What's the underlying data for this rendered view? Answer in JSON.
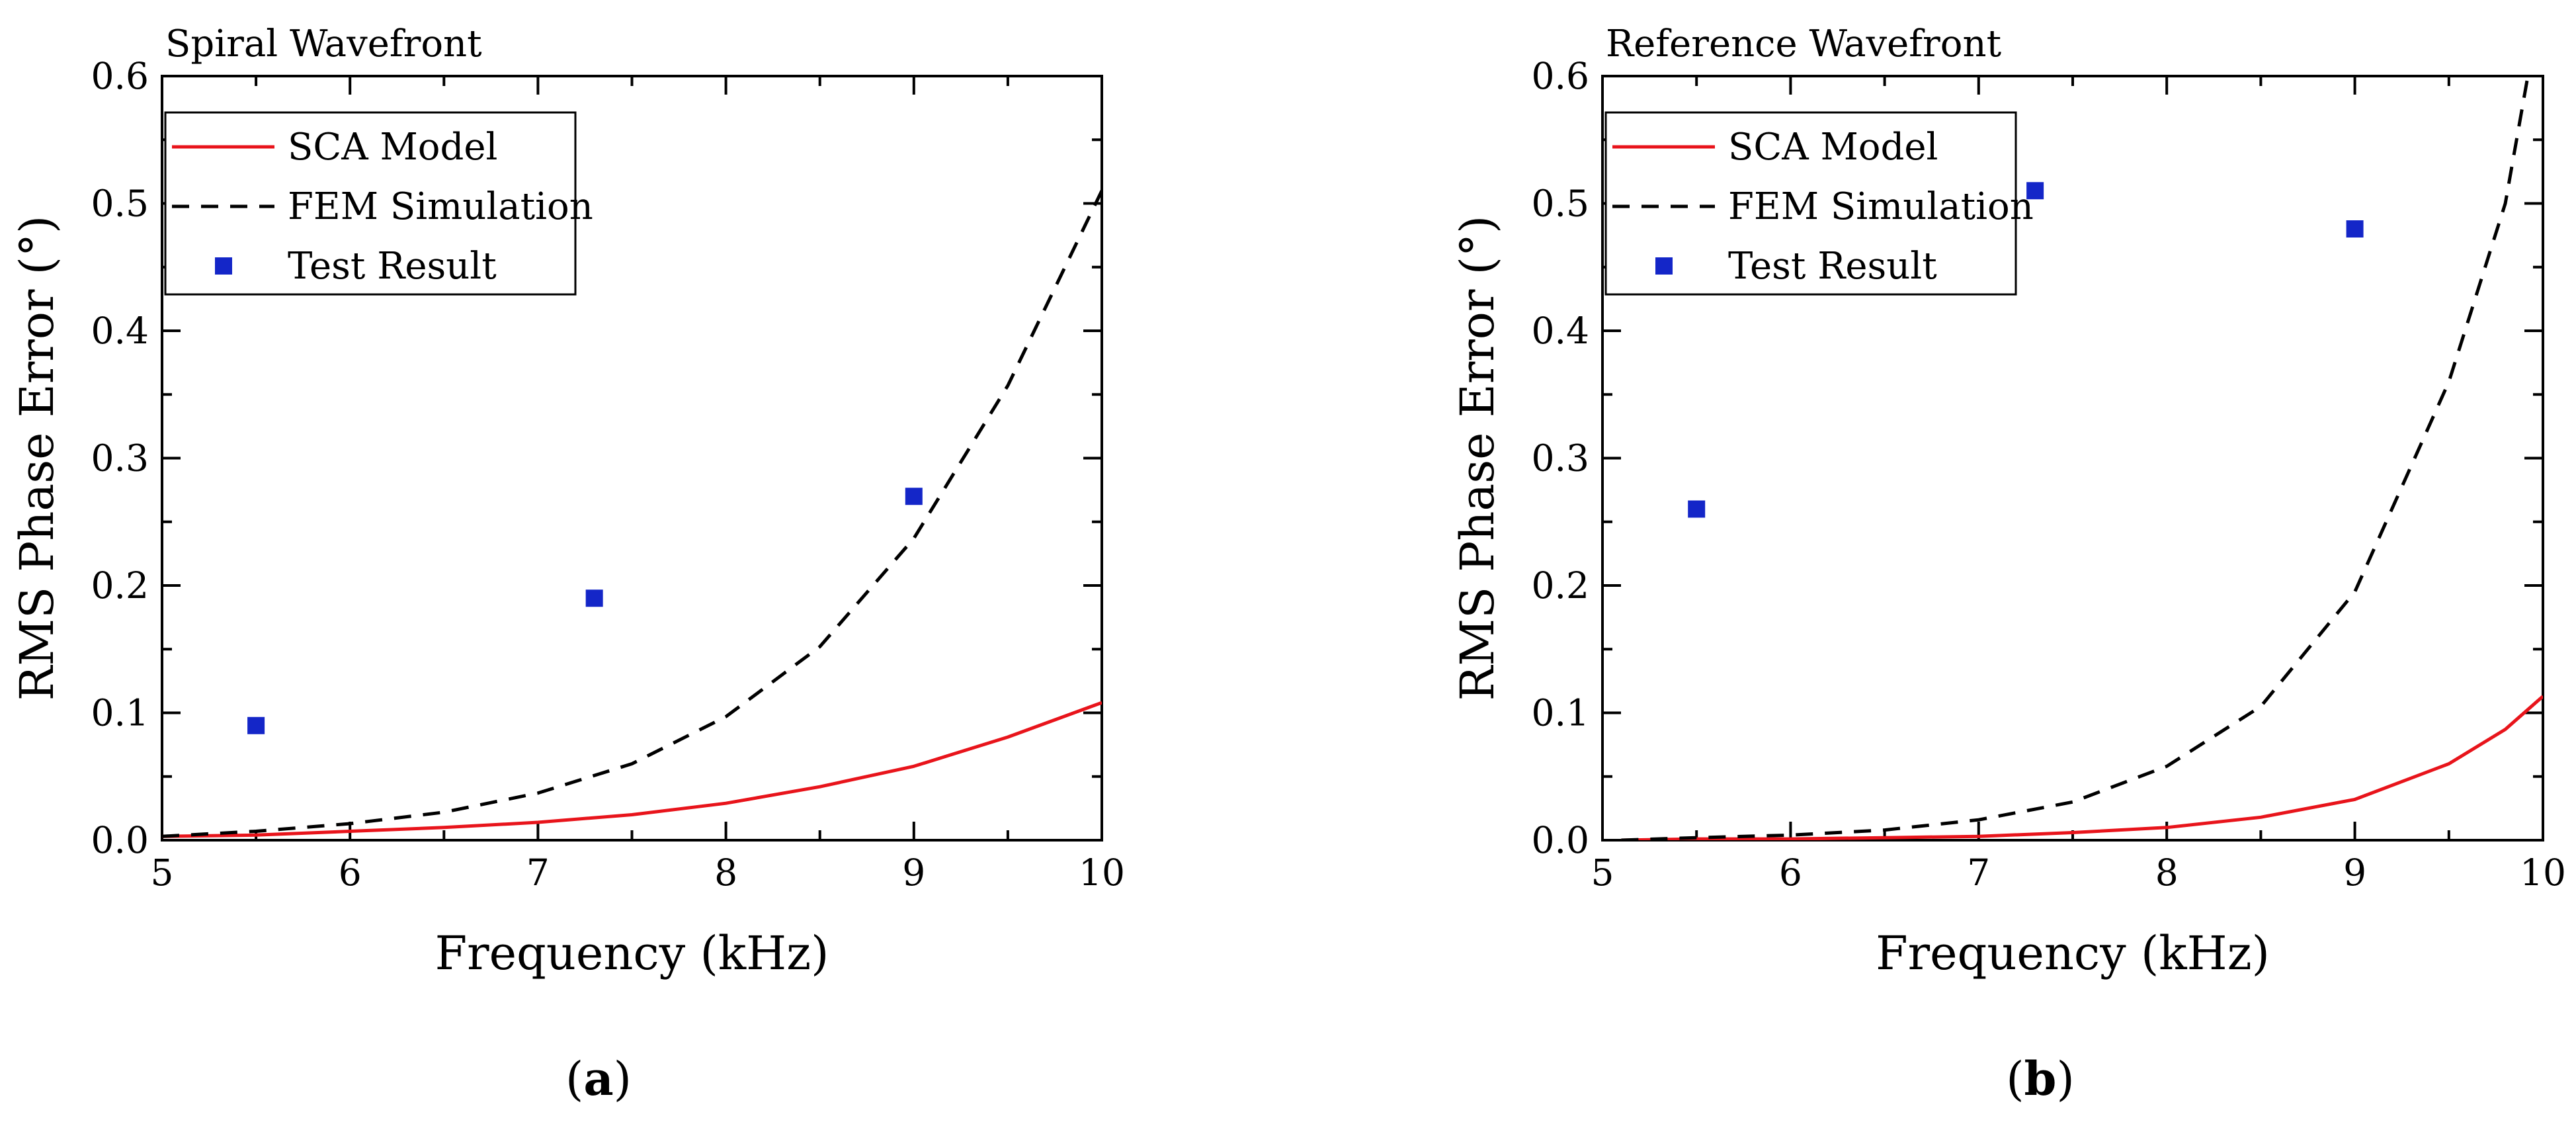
{
  "chart_data": [
    {
      "type": "line",
      "panel_label": "a",
      "title": "Spiral Wavefront",
      "xlabel": "Frequency (kHz)",
      "ylabel": "RMS Phase Error (°)",
      "xlim": [
        5,
        10
      ],
      "ylim": [
        0,
        0.6
      ],
      "xticks": [
        5,
        6,
        7,
        8,
        9,
        10
      ],
      "yticks": [
        0.0,
        0.1,
        0.2,
        0.3,
        0.4,
        0.5,
        0.6
      ],
      "ytick_labels": [
        "0.0",
        "0.1",
        "0.2",
        "0.3",
        "0.4",
        "0.5",
        "0.6"
      ],
      "legend_position": "top-left",
      "series": [
        {
          "name": "SCA Model",
          "style": "solid",
          "color": "#e8141b",
          "x": [
            5.0,
            5.5,
            6.0,
            6.5,
            7.0,
            7.5,
            8.0,
            8.5,
            9.0,
            9.5,
            10.0
          ],
          "y": [
            0.003,
            0.004,
            0.007,
            0.01,
            0.014,
            0.02,
            0.029,
            0.042,
            0.058,
            0.081,
            0.108
          ]
        },
        {
          "name": "FEM Simulation",
          "style": "dashed",
          "color": "#000000",
          "x": [
            5.0,
            5.5,
            6.0,
            6.5,
            7.0,
            7.5,
            8.0,
            8.5,
            9.0,
            9.5,
            10.0
          ],
          "y": [
            0.003,
            0.007,
            0.013,
            0.022,
            0.037,
            0.06,
            0.097,
            0.152,
            0.237,
            0.357,
            0.51
          ]
        },
        {
          "name": "Test Result",
          "style": "markers",
          "color": "#1426c8",
          "x": [
            5.5,
            7.3,
            9.0
          ],
          "y": [
            0.09,
            0.19,
            0.27
          ]
        }
      ]
    },
    {
      "type": "line",
      "panel_label": "b",
      "title": "Reference Wavefront",
      "xlabel": "Frequency (kHz)",
      "ylabel": "RMS Phase Error (°)",
      "xlim": [
        5,
        10
      ],
      "ylim": [
        0,
        0.6
      ],
      "xticks": [
        5,
        6,
        7,
        8,
        9,
        10
      ],
      "yticks": [
        0.0,
        0.1,
        0.2,
        0.3,
        0.4,
        0.5,
        0.6
      ],
      "ytick_labels": [
        "0.0",
        "0.1",
        "0.2",
        "0.3",
        "0.4",
        "0.5",
        "0.6"
      ],
      "legend_position": "top-left",
      "series": [
        {
          "name": "SCA Model",
          "style": "solid",
          "color": "#e8141b",
          "x": [
            5.1,
            5.5,
            6.0,
            6.5,
            7.0,
            7.5,
            8.0,
            8.5,
            9.0,
            9.5,
            9.8,
            10.0
          ],
          "y": [
            0.0,
            0.001,
            0.001,
            0.002,
            0.003,
            0.006,
            0.01,
            0.018,
            0.032,
            0.06,
            0.087,
            0.113
          ]
        },
        {
          "name": "FEM Simulation",
          "style": "dashed",
          "color": "#000000",
          "x": [
            5.1,
            5.5,
            6.0,
            6.5,
            7.0,
            7.5,
            8.0,
            8.5,
            9.0,
            9.5,
            9.8,
            9.92
          ],
          "y": [
            0.0,
            0.002,
            0.004,
            0.008,
            0.016,
            0.03,
            0.058,
            0.105,
            0.195,
            0.36,
            0.5,
            0.6
          ]
        },
        {
          "name": "Test Result",
          "style": "markers",
          "color": "#1426c8",
          "x": [
            5.5,
            7.3,
            9.0
          ],
          "y": [
            0.26,
            0.51,
            0.48
          ]
        }
      ]
    }
  ]
}
